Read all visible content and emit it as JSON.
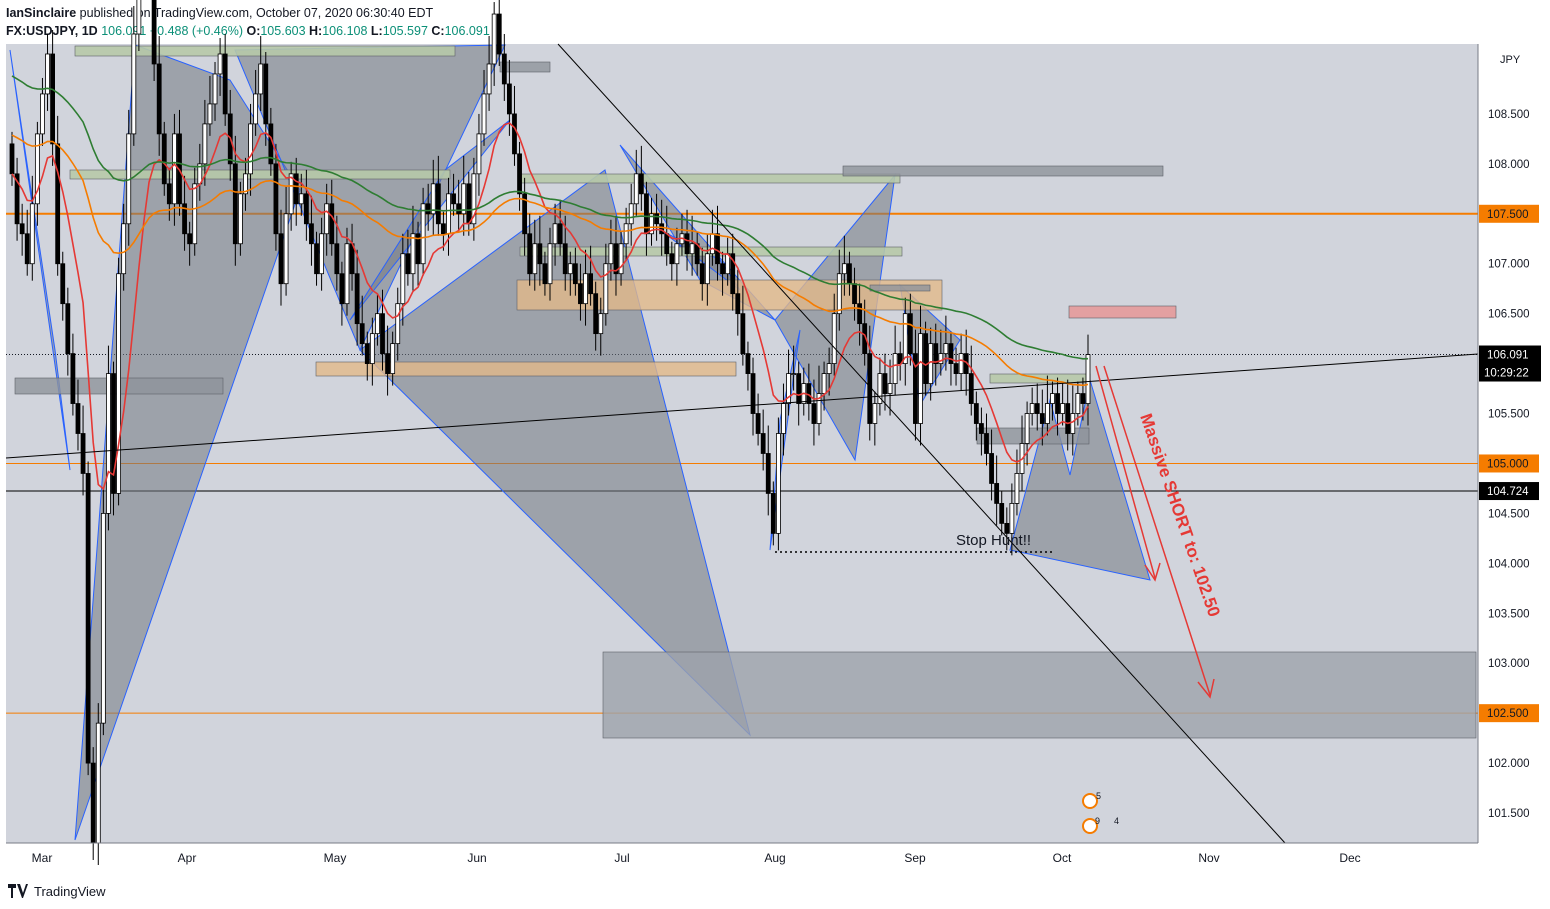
{
  "header": {
    "author": "IanSinclaire",
    "published_text": "published on TradingView.com, October 07, 2020 06:30:40 EDT",
    "symbol": "FX:USDJPY, 1D",
    "last": "106.091",
    "change": "+0.488 (+0.46%)",
    "o_label": "O:",
    "o": "105.603",
    "h_label": "H:",
    "h": "106.108",
    "l_label": "L:",
    "l": "105.597",
    "c_label": "C:",
    "c": "106.091"
  },
  "footer": {
    "brand": "TradingView"
  },
  "colors": {
    "background": "#d1d4dc",
    "up": "#ffffff",
    "down": "#000000",
    "ema_red": "#e53935",
    "ema_orange": "#f57c00",
    "ema_green": "#2e7d32",
    "pattern_fill": "#737882",
    "pattern_stroke": "#2962ff",
    "annotation_red": "#e53935"
  },
  "chart_data": {
    "type": "candlestick",
    "title": "",
    "currency": "JPY",
    "x_ticks": [
      "Mar",
      "Apr",
      "May",
      "Jun",
      "Jul",
      "Aug",
      "Sep",
      "Oct",
      "Nov",
      "Dec"
    ],
    "y_ticks": [
      "101.500",
      "102.000",
      "102.500",
      "103.000",
      "103.500",
      "104.000",
      "104.500",
      "105.000",
      "105.500",
      "106.000",
      "106.500",
      "107.000",
      "107.500",
      "108.000",
      "108.500"
    ],
    "ylim": [
      101.2,
      109.2
    ],
    "horizontal_levels": [
      {
        "value": 107.5,
        "label": "107.500",
        "color": "#f57c00"
      },
      {
        "value": 105.0,
        "label": "105.000",
        "color": "#f57c00"
      },
      {
        "value": 104.724,
        "label": "104.724",
        "color": "#000000"
      },
      {
        "value": 102.5,
        "label": "102.500",
        "color": "#f57c00"
      }
    ],
    "last_price": {
      "value": 106.091,
      "label": "106.091",
      "countdown": "10:29:22"
    },
    "annotations": [
      {
        "text": "Massive SHORT to: 102.50"
      },
      {
        "text": "Stop Hunt!!"
      }
    ],
    "events": [
      "5",
      "9",
      "4"
    ],
    "candles_close": [
      107.9,
      107.4,
      107.3,
      107.0,
      107.6,
      108.3,
      108.7,
      109.1,
      108.2,
      107.0,
      106.6,
      106.1,
      105.6,
      105.3,
      104.9,
      102.0,
      101.2,
      102.4,
      104.5,
      105.9,
      104.7,
      106.9,
      107.4,
      108.3,
      109.3,
      109.9,
      110.1,
      110.0,
      109.0,
      108.3,
      107.8,
      107.6,
      108.3,
      107.6,
      107.3,
      107.2,
      107.8,
      108.0,
      108.4,
      108.6,
      108.9,
      109.1,
      108.5,
      108.0,
      107.2,
      107.7,
      107.9,
      108.4,
      108.7,
      109.0,
      108.4,
      108.0,
      107.3,
      106.8,
      107.5,
      107.9,
      107.6,
      107.7,
      107.4,
      107.2,
      106.9,
      107.3,
      107.6,
      107.2,
      106.9,
      106.6,
      107.2,
      106.9,
      106.4,
      106.2,
      106.0,
      106.3,
      106.5,
      106.1,
      105.9,
      106.2,
      106.6,
      107.1,
      106.9,
      107.3,
      107.0,
      107.6,
      107.5,
      107.8,
      107.4,
      107.3,
      107.7,
      107.6,
      107.5,
      107.8,
      107.4,
      107.9,
      108.3,
      108.7,
      109.0,
      109.5,
      109.1,
      108.8,
      108.5,
      108.1,
      107.7,
      107.3,
      106.9,
      107.2,
      107.0,
      106.8,
      107.2,
      107.4,
      107.2,
      106.9,
      107.0,
      106.8,
      106.6,
      106.9,
      106.7,
      106.3,
      106.5,
      107.0,
      107.2,
      106.9,
      107.2,
      107.4,
      107.6,
      107.9,
      107.7,
      107.3,
      107.5,
      107.4,
      107.3,
      107.1,
      107.0,
      107.2,
      107.3,
      107.1,
      107.2,
      107.0,
      106.8,
      107.1,
      107.3,
      107.0,
      106.9,
      107.1,
      106.7,
      106.5,
      106.1,
      105.9,
      105.5,
      105.3,
      105.1,
      104.7,
      104.3,
      105.3,
      105.6,
      105.9,
      105.9,
      105.6,
      105.8,
      105.6,
      105.4,
      105.7,
      105.9,
      106.0,
      106.5,
      106.9,
      107.0,
      106.8,
      106.6,
      106.4,
      106.1,
      105.4,
      105.6,
      105.9,
      105.7,
      105.8,
      106.1,
      106.0,
      106.5,
      106.1,
      105.4,
      106.3,
      105.8,
      106.2,
      106.0,
      106.1,
      106.2,
      106.0,
      105.9,
      106.1,
      105.9,
      105.6,
      105.4,
      105.3,
      105.1,
      104.8,
      104.6,
      104.4,
      104.3,
      104.6,
      104.9,
      105.2,
      105.5,
      105.6,
      105.5,
      105.4,
      105.6,
      105.7,
      105.5,
      105.6,
      105.3,
      105.5,
      105.7,
      105.6,
      106.09
    ]
  }
}
